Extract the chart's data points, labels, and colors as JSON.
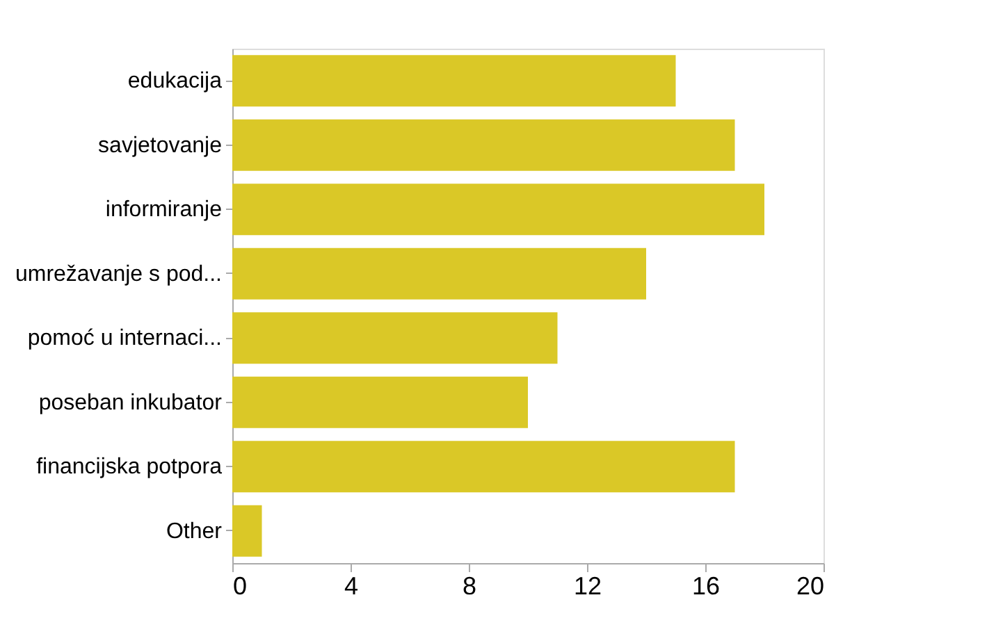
{
  "chart_data": {
    "type": "bar",
    "orientation": "horizontal",
    "categories": [
      "edukacija",
      "savjetovanje",
      "informiranje",
      "umrežavanje s pod...",
      "pomoć u internaci...",
      "poseban inkubator",
      "financijska potpora",
      "Other"
    ],
    "values": [
      15,
      17,
      18,
      14,
      11,
      10,
      17,
      1
    ],
    "color": "#dac827",
    "xlim": [
      0,
      20
    ],
    "xticks": [
      0,
      4,
      8,
      12,
      16,
      20
    ],
    "grid": false
  }
}
